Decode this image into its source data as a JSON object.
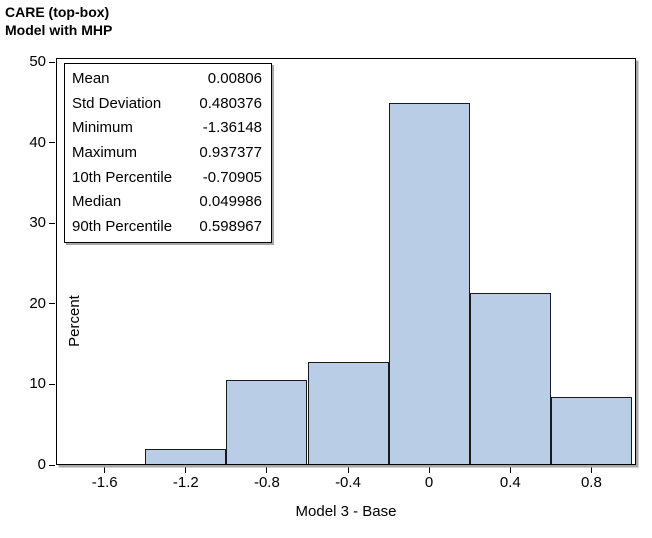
{
  "title": {
    "line1": "CARE (top-box)",
    "line2": "Model with MHP"
  },
  "stats_box": {
    "rows": [
      {
        "label": "Mean",
        "value": "0.00806"
      },
      {
        "label": "Std Deviation",
        "value": "0.480376"
      },
      {
        "label": "Minimum",
        "value": "-1.36148"
      },
      {
        "label": "Maximum",
        "value": "0.937377"
      },
      {
        "label": "10th Percentile",
        "value": "-0.70905"
      },
      {
        "label": "Median",
        "value": "0.049986"
      },
      {
        "label": "90th Percentile",
        "value": "0.598967"
      }
    ]
  },
  "chart_data": {
    "type": "bar",
    "subtype": "histogram",
    "title": "CARE (top-box) / Model with MHP",
    "xlabel": "Model 3 - Base",
    "ylabel": "Percent",
    "bin_width": 0.4,
    "bin_midpoints": [
      -1.2,
      -0.8,
      -0.4,
      0,
      0.4,
      0.8
    ],
    "values_percent": [
      2.0,
      10.5,
      12.8,
      44.9,
      21.3,
      8.5
    ],
    "x_ticks": [
      {
        "value": -1.6,
        "label": "-1.6"
      },
      {
        "value": -1.2,
        "label": "-1.2"
      },
      {
        "value": -0.8,
        "label": "-0.8"
      },
      {
        "value": -0.4,
        "label": "-0.4"
      },
      {
        "value": 0,
        "label": "0"
      },
      {
        "value": 0.4,
        "label": "0.4"
      },
      {
        "value": 0.8,
        "label": "0.8"
      }
    ],
    "y_ticks": [
      {
        "value": 0,
        "label": "0"
      },
      {
        "value": 10,
        "label": "10"
      },
      {
        "value": 20,
        "label": "20"
      },
      {
        "value": 30,
        "label": "30"
      },
      {
        "value": 40,
        "label": "40"
      },
      {
        "value": 50,
        "label": "50"
      }
    ],
    "xlim": [
      -1.84,
      1.02
    ],
    "ylim": [
      0,
      50.5
    ],
    "grid": false,
    "legend": "none",
    "bar_fill": "#b9cde6",
    "bar_border": "#1a1a1a",
    "frame_shadow": "#a8a8a8"
  }
}
